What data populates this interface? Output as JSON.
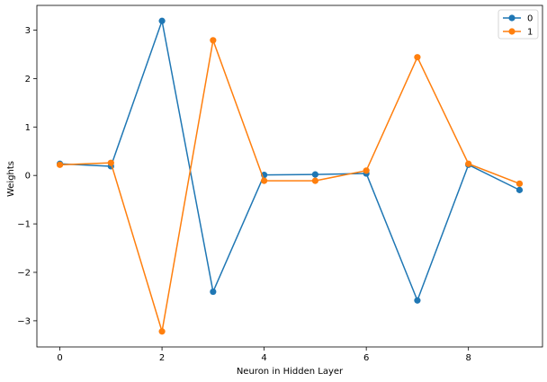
{
  "chart_data": {
    "type": "line",
    "title": "",
    "xlabel": "Neuron in Hidden Layer",
    "ylabel": "Weights",
    "x": [
      0,
      1,
      2,
      3,
      4,
      5,
      6,
      7,
      8,
      9
    ],
    "series": [
      {
        "name": "0",
        "color": "#1f77b4",
        "values": [
          0.24,
          0.19,
          3.19,
          -2.4,
          0.01,
          0.02,
          0.04,
          -2.58,
          0.22,
          -0.3
        ]
      },
      {
        "name": "1",
        "color": "#ff7f0e",
        "values": [
          0.22,
          0.26,
          -3.22,
          2.79,
          -0.11,
          -0.11,
          0.1,
          2.44,
          0.24,
          -0.17
        ]
      }
    ],
    "xlim": [
      -0.45,
      9.45
    ],
    "ylim": [
      -3.54,
      3.51
    ],
    "xticks": [
      0,
      2,
      4,
      6,
      8
    ],
    "xtick_labels": [
      "0",
      "2",
      "4",
      "6",
      "8"
    ],
    "yticks": [
      3,
      2,
      1,
      0,
      -1,
      -2,
      -3
    ],
    "ytick_labels": [
      "3",
      "2",
      "1",
      "0",
      "−1",
      "−2",
      "−3"
    ],
    "grid": false,
    "legend_placement": "upper-right",
    "marker": "circle"
  }
}
